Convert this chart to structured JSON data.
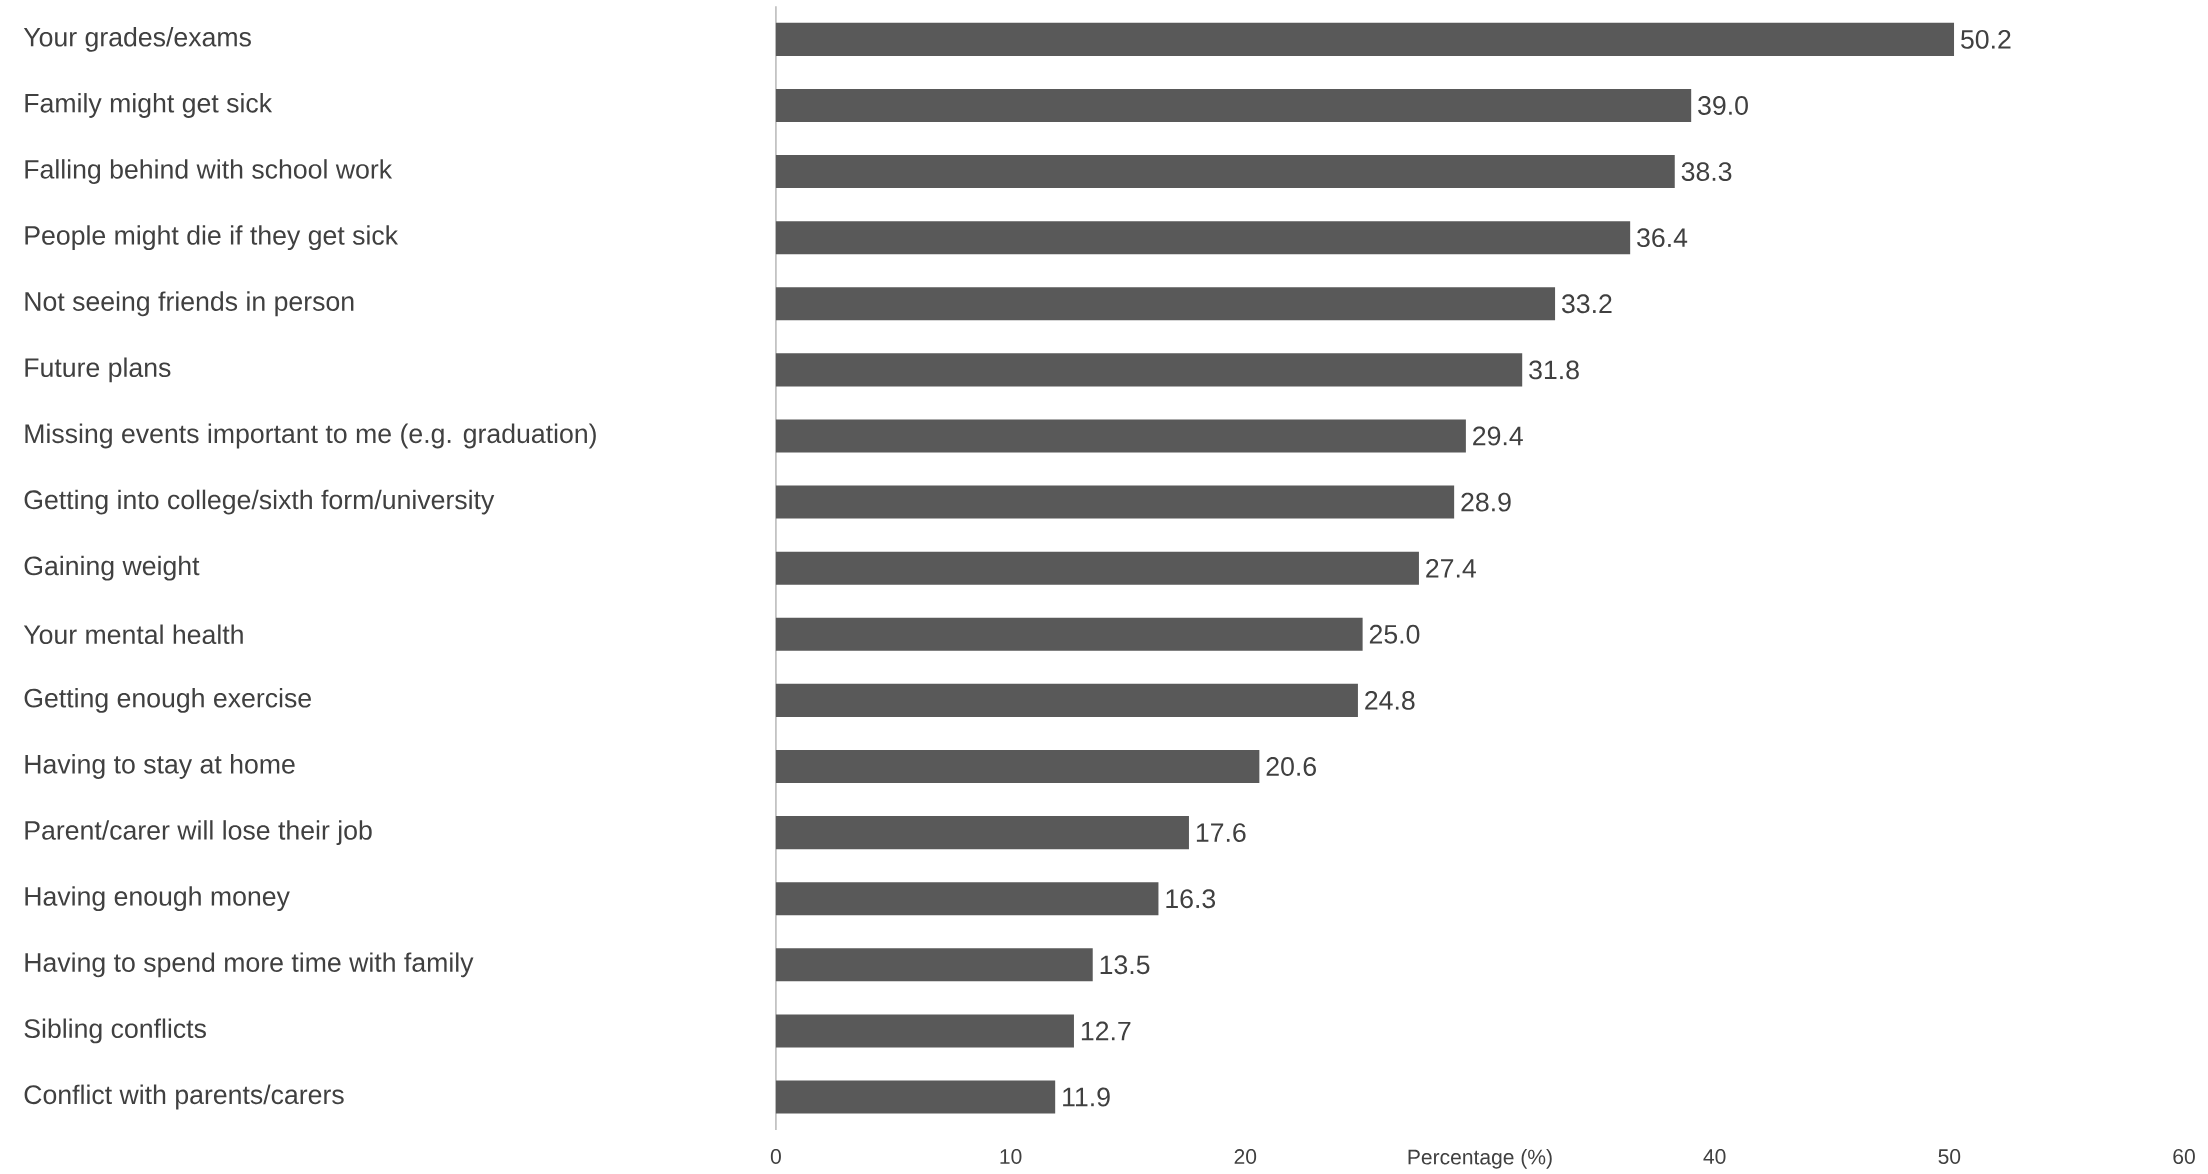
{
  "chart_data": {
    "type": "bar",
    "orientation": "horizontal",
    "categories": [
      "Your grades/exams",
      "Family might get sick",
      "Falling behind with school work",
      "People might die if they get sick",
      "Not seeing friends in person",
      "Future plans",
      "Missing events important to me (e.g. graduation)",
      "Getting into college/sixth form/university",
      "Gaining weight",
      "Your mental health",
      "Getting enough exercise",
      "Having to stay at home",
      "Parent/carer will lose their job",
      "Having enough money",
      "Having to spend more time with family",
      "Sibling conflicts",
      "Conflict with parents/carers"
    ],
    "values": [
      50.2,
      39.0,
      38.3,
      36.4,
      33.2,
      31.8,
      29.4,
      28.9,
      27.4,
      25.0,
      24.8,
      20.6,
      17.6,
      16.3,
      13.5,
      12.7,
      11.9
    ],
    "value_labels": [
      "50.2",
      "39.0",
      "38.3",
      "36.4",
      "33.2",
      "31.8",
      "29.4",
      "28.9",
      "27.4",
      "25.0",
      "24.8",
      "20.6",
      "17.6",
      "16.3",
      "13.5",
      "12.7",
      "11.9"
    ],
    "color": "#595959",
    "xlabel": "Percentage (%)",
    "xlim": [
      0,
      60
    ],
    "xticks": [
      0,
      10,
      20,
      40,
      50,
      60
    ]
  }
}
